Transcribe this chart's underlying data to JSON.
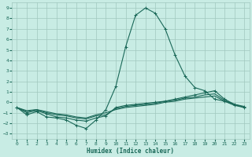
{
  "xlabel": "Humidex (Indice chaleur)",
  "bg_color": "#c8ece4",
  "grid_color": "#a0c8be",
  "line_color": "#1a6858",
  "xlim": [
    -0.5,
    23.5
  ],
  "ylim": [
    -3.5,
    9.5
  ],
  "xticks": [
    0,
    1,
    2,
    3,
    4,
    5,
    6,
    7,
    8,
    9,
    10,
    11,
    12,
    13,
    14,
    15,
    16,
    17,
    18,
    19,
    20,
    21,
    22,
    23
  ],
  "yticks": [
    -3,
    -2,
    -1,
    0,
    1,
    2,
    3,
    4,
    5,
    6,
    7,
    8,
    9
  ],
  "series1_x": [
    0,
    1,
    2,
    3,
    4,
    5,
    6,
    7,
    8,
    9,
    10,
    11,
    12,
    13,
    14,
    15,
    16,
    17,
    18,
    19,
    20,
    21,
    22,
    23
  ],
  "series1_y": [
    -0.5,
    -1.2,
    -0.9,
    -1.4,
    -1.5,
    -1.7,
    -2.2,
    -2.5,
    -1.7,
    -0.7,
    1.5,
    5.3,
    8.3,
    9.0,
    8.5,
    7.0,
    4.5,
    2.5,
    1.4,
    1.1,
    0.3,
    0.1,
    -0.3,
    -0.5
  ],
  "series2_x": [
    0,
    1,
    2,
    3,
    4,
    5,
    6,
    7,
    8,
    9,
    10,
    11,
    12,
    13,
    14,
    15,
    16,
    17,
    18,
    19,
    20,
    21,
    22,
    23
  ],
  "series2_y": [
    -0.5,
    -1.0,
    -0.8,
    -1.1,
    -1.4,
    -1.5,
    -1.7,
    -1.8,
    -1.5,
    -1.3,
    -0.5,
    -0.3,
    -0.2,
    -0.1,
    0.0,
    0.1,
    0.3,
    0.5,
    0.7,
    0.9,
    1.1,
    0.3,
    -0.2,
    -0.4
  ],
  "series3_x": [
    0,
    1,
    2,
    3,
    4,
    5,
    6,
    7,
    8,
    9,
    10,
    11,
    12,
    13,
    14,
    15,
    16,
    17,
    18,
    19,
    20,
    21,
    22,
    23
  ],
  "series3_y": [
    -0.5,
    -0.9,
    -0.7,
    -1.0,
    -1.2,
    -1.3,
    -1.5,
    -1.6,
    -1.3,
    -1.2,
    -0.6,
    -0.4,
    -0.3,
    -0.2,
    -0.1,
    0.1,
    0.2,
    0.4,
    0.5,
    0.7,
    0.8,
    0.2,
    -0.2,
    -0.5
  ],
  "series4_x": [
    0,
    1,
    2,
    3,
    4,
    5,
    6,
    7,
    8,
    9,
    10,
    11,
    12,
    13,
    14,
    15,
    16,
    17,
    18,
    19,
    20,
    21,
    22,
    23
  ],
  "series4_y": [
    -0.5,
    -0.8,
    -0.7,
    -0.9,
    -1.1,
    -1.2,
    -1.4,
    -1.5,
    -1.2,
    -1.0,
    -0.7,
    -0.5,
    -0.4,
    -0.3,
    -0.2,
    0.0,
    0.1,
    0.3,
    0.4,
    0.5,
    0.6,
    0.1,
    -0.2,
    -0.5
  ]
}
